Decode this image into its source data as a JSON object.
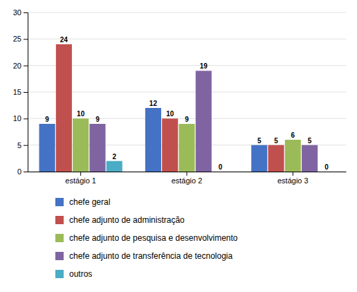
{
  "chart_data": {
    "type": "bar",
    "categories": [
      "estágio 1",
      "estágio 2",
      "estágio 3"
    ],
    "series": [
      {
        "name": "chefe geral",
        "color": "#4472C4",
        "values": [
          9,
          12,
          5
        ]
      },
      {
        "name": "chefe adjunto de administração",
        "color": "#C0504D",
        "values": [
          24,
          10,
          5
        ]
      },
      {
        "name": "chefe adjunto de pesquisa e desenvolvimento",
        "color": "#9BBB59",
        "values": [
          10,
          9,
          6
        ]
      },
      {
        "name": "chefe adjunto de transferência de tecnologia",
        "color": "#8064A2",
        "values": [
          9,
          19,
          5
        ]
      },
      {
        "name": "outros",
        "color": "#4BACC6",
        "values": [
          2,
          0,
          0
        ]
      }
    ],
    "ylim": [
      0,
      30
    ],
    "yticks": [
      0,
      5,
      10,
      15,
      20,
      25,
      30
    ],
    "grid": true,
    "data_labels": true,
    "legend": "bottom"
  }
}
